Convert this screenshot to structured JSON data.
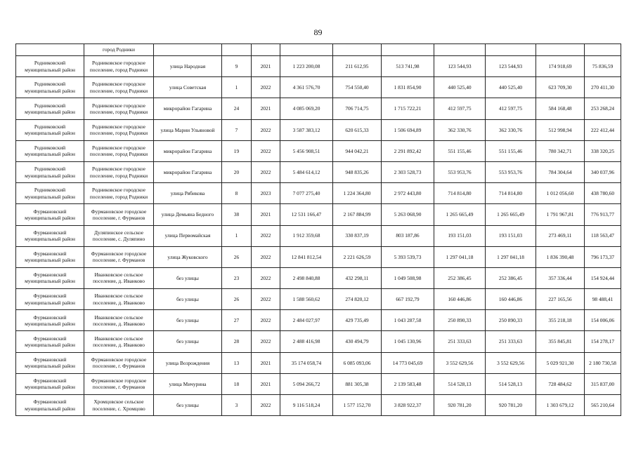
{
  "page_number": "89",
  "continuation_row": {
    "settlement": "город Родники"
  },
  "rows": [
    {
      "district": "Родниковский муниципальный район",
      "settlement": "Родниковское городское поселение, город Родники",
      "street": "улица Народная",
      "house": "9",
      "year": "2021",
      "c1": "1 223 200,08",
      "c2": "211 612,95",
      "c3": "513 741,98",
      "c4": "123 544,93",
      "c5": "123 544,93",
      "c6": "174 918,69",
      "c7": "75 836,59"
    },
    {
      "district": "Родниковский муниципальный район",
      "settlement": "Родниковское городское поселение, город Родники",
      "street": "улица Советская",
      "house": "1",
      "year": "2022",
      "c1": "4 361 576,70",
      "c2": "754 550,40",
      "c3": "1 831 854,90",
      "c4": "440 525,40",
      "c5": "440 525,40",
      "c6": "623 709,30",
      "c7": "270 411,30"
    },
    {
      "district": "Родниковский муниципальный район",
      "settlement": "Родниковское городское поселение, город Родники",
      "street": "микрорайон Гагарина",
      "house": "24",
      "year": "2021",
      "c1": "4 085 069,20",
      "c2": "706 714,75",
      "c3": "1 715 722,21",
      "c4": "412 597,75",
      "c5": "412 597,75",
      "c6": "584 168,48",
      "c7": "253 268,24"
    },
    {
      "district": "Родниковский муниципальный район",
      "settlement": "Родниковское городское поселение, город Родники",
      "street": "улица Марии Ульяновой",
      "house": "7",
      "year": "2022",
      "c1": "3 587 383,12",
      "c2": "620 615,33",
      "c3": "1 506 694,89",
      "c4": "362 330,76",
      "c5": "362 330,76",
      "c6": "512 998,94",
      "c7": "222 412,44"
    },
    {
      "district": "Родниковский муниципальный район",
      "settlement": "Родниковское городское поселение, город Родники",
      "street": "микрорайон Гагарина",
      "house": "19",
      "year": "2022",
      "c1": "5 456 908,51",
      "c2": "944 042,21",
      "c3": "2 291 892,42",
      "c4": "551 155,46",
      "c5": "551 155,46",
      "c6": "780 342,71",
      "c7": "338 320,25"
    },
    {
      "district": "Родниковский муниципальный район",
      "settlement": "Родниковское городское поселение, город Родники",
      "street": "микрорайон Гагарина",
      "house": "20",
      "year": "2022",
      "c1": "5 484 614,12",
      "c2": "948 835,26",
      "c3": "2 303 528,73",
      "c4": "553 953,76",
      "c5": "553 953,76",
      "c6": "784 304,64",
      "c7": "340 037,96"
    },
    {
      "district": "Родниковский муниципальный район",
      "settlement": "Родниковское городское поселение, город Родники",
      "street": "улица Рябикова",
      "house": "8",
      "year": "2023",
      "c1": "7 077 275,40",
      "c2": "1 224 364,80",
      "c3": "2 972 443,80",
      "c4": "714 814,80",
      "c5": "714 814,80",
      "c6": "1 012 056,60",
      "c7": "438 780,60"
    },
    {
      "district": "Фурмановский муниципальный район",
      "settlement": "Фурмановское городское поселение, г. Фурманов",
      "street": "улица Демьяна Бедного",
      "house": "38",
      "year": "2021",
      "c1": "12 531 166,47",
      "c2": "2 167 884,99",
      "c3": "5 263 068,90",
      "c4": "1 265 665,49",
      "c5": "1 265 665,49",
      "c6": "1 791 967,81",
      "c7": "776 913,77"
    },
    {
      "district": "Фурмановский муниципальный район",
      "settlement": "Дуляпинское сельское поселение, с. Дуляпино",
      "street": "улица Первомайская",
      "house": "1",
      "year": "2022",
      "c1": "1 912 359,68",
      "c2": "330 837,19",
      "c3": "803 187,86",
      "c4": "193 151,03",
      "c5": "193 151,03",
      "c6": "273 469,11",
      "c7": "118 563,47"
    },
    {
      "district": "Фурмановский муниципальный район",
      "settlement": "Фурмановское городское поселение, г. Фурманов",
      "street": "улица Жуковского",
      "house": "26",
      "year": "2022",
      "c1": "12 841 812,54",
      "c2": "2 221 626,59",
      "c3": "5 393 539,73",
      "c4": "1 297 041,18",
      "c5": "1 297 041,18",
      "c6": "1 836 390,48",
      "c7": "796 173,37"
    },
    {
      "district": "Фурмановский муниципальный район",
      "settlement": "Иванковское сельское поселение, д. Иванково",
      "street": "без улицы",
      "house": "23",
      "year": "2022",
      "c1": "2 498 840,88",
      "c2": "432 298,11",
      "c3": "1 049 508,98",
      "c4": "252 386,45",
      "c5": "252 386,45",
      "c6": "357 336,44",
      "c7": "154 924,44"
    },
    {
      "district": "Фурмановский муниципальный район",
      "settlement": "Иванковское сельское поселение, д. Иванково",
      "street": "без улицы",
      "house": "26",
      "year": "2022",
      "c1": "1 588 560,62",
      "c2": "274 820,12",
      "c3": "667 192,79",
      "c4": "160 446,86",
      "c5": "160 446,86",
      "c6": "227 165,56",
      "c7": "98 488,41"
    },
    {
      "district": "Фурмановский муниципальный район",
      "settlement": "Иванковское сельское поселение, д. Иванково",
      "street": "без улицы",
      "house": "27",
      "year": "2022",
      "c1": "2 484 027,97",
      "c2": "429 735,49",
      "c3": "1 043 287,58",
      "c4": "250 890,33",
      "c5": "250 890,33",
      "c6": "355 218,18",
      "c7": "154 006,06"
    },
    {
      "district": "Фурмановский муниципальный район",
      "settlement": "Иванковское сельское поселение, д. Иванково",
      "street": "без улицы",
      "house": "28",
      "year": "2022",
      "c1": "2 488 416,98",
      "c2": "430 494,79",
      "c3": "1 045 130,96",
      "c4": "251 333,63",
      "c5": "251 333,63",
      "c6": "355 845,81",
      "c7": "154 278,17"
    },
    {
      "district": "Фурмановский муниципальный район",
      "settlement": "Фурмановское городское поселение, г. Фурманов",
      "street": "улица Возрождения",
      "house": "13",
      "year": "2021",
      "c1": "35 174 058,74",
      "c2": "6 085 093,06",
      "c3": "14 773 045,69",
      "c4": "3 552 629,56",
      "c5": "3 552 629,56",
      "c6": "5 029 921,30",
      "c7": "2 180 730,58"
    },
    {
      "district": "Фурмановский муниципальный район",
      "settlement": "Фурмановское городское поселение, г. Фурманов",
      "street": "улица Мичурина",
      "house": "18",
      "year": "2021",
      "c1": "5 094 266,72",
      "c2": "881 305,38",
      "c3": "2 139 583,48",
      "c4": "514 528,13",
      "c5": "514 528,13",
      "c6": "728 484,62",
      "c7": "315 837,00"
    },
    {
      "district": "Фурмановский муниципальный район",
      "settlement": "Хромцовское сельское поселение, с. Хромцово",
      "street": "без улицы",
      "house": "3",
      "year": "2022",
      "c1": "9 116 518,24",
      "c2": "1 577 152,70",
      "c3": "3 828 922,37",
      "c4": "920 781,20",
      "c5": "920 781,20",
      "c6": "1 303 679,12",
      "c7": "565 210,64"
    }
  ]
}
